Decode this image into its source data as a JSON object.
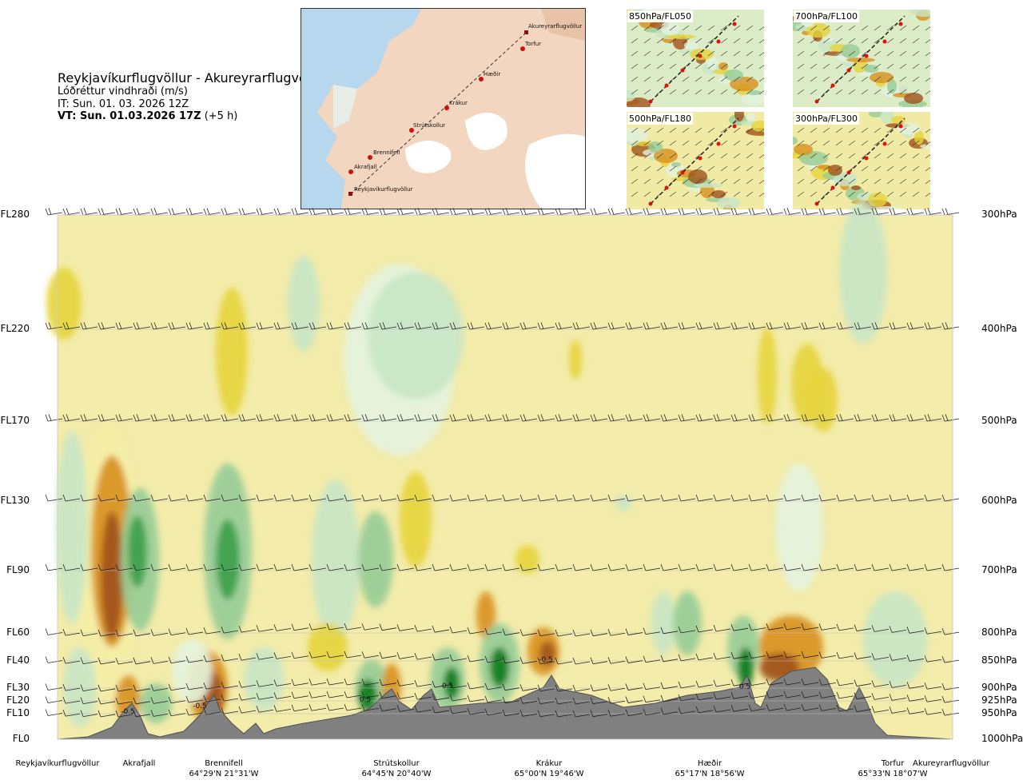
{
  "header": {
    "route": "Reykjavíkurflugvöllur - Akureyrarflugvöllur",
    "variable": "Lóðréttur vindhraði (m/s)",
    "it": "IT: Sun. 01. 03. 2026 12Z",
    "vt_bold": "VT: Sun. 01.03.2026 17Z",
    "vt_offset": "(+5 h)"
  },
  "map": {
    "points": [
      "Akureyrarflugvöllur",
      "Torfur",
      "Hæðir",
      "Krákur",
      "Strútskollur",
      "Brennifell",
      "Akrafjall",
      "Reykjavíkurflugvöllur"
    ]
  },
  "mini_maps": [
    "850hPa/FL050",
    "700hPa/FL100",
    "500hPa/FL180",
    "300hPa/FL300"
  ],
  "chart_data": {
    "type": "heatmap",
    "title": "Lóðréttur vindhraði (m/s)",
    "y_left_labels": [
      "FL280",
      "FL220",
      "FL170",
      "FL130",
      "FL90",
      "FL60",
      "FL40",
      "FL30",
      "FL20",
      "FL10",
      "FL0"
    ],
    "y_right_labels": [
      "300hPa",
      "400hPa",
      "500hPa",
      "600hPa",
      "700hPa",
      "800hPa",
      "850hPa",
      "900hPa",
      "925hPa",
      "950hPa",
      "1000hPa"
    ],
    "ylim_hpa": [
      1000,
      300
    ],
    "x_locations": [
      {
        "name": "Reykjavíkurflugvöllur",
        "coord": ""
      },
      {
        "name": "Akrafjall",
        "coord": ""
      },
      {
        "name": "Brennifell",
        "coord": "64°29'N 21°31'W"
      },
      {
        "name": "Strútskollur",
        "coord": "64°45'N 20°40'W"
      },
      {
        "name": "Krákur",
        "coord": "65°00'N 19°46'W"
      },
      {
        "name": "Hæðir",
        "coord": "65°17'N 18°56'W"
      },
      {
        "name": "Torfur",
        "coord": "65°33'N 18°07'W"
      },
      {
        "name": "Akureyrarflugvöllur",
        "coord": ""
      }
    ],
    "contour_labels": [
      "-0.5",
      "0.5",
      "-0.5",
      "-0.5",
      "0.5",
      "0.5"
    ],
    "colors": {
      "strong_up": "#a0521c",
      "mod_up": "#d8901e",
      "weak_up": "#e6d43a",
      "very_weak_up": "#f5eea5",
      "neutral": "#fbfbe6",
      "very_weak_down": "#e4f3de",
      "weak_down": "#c8e6c5",
      "mod_down": "#96cc96",
      "strong_down": "#3aa04a",
      "very_strong_down": "#0a7a1a",
      "terrain": "#808080"
    }
  }
}
